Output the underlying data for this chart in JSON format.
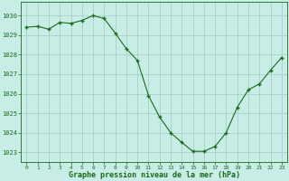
{
  "x": [
    0,
    1,
    2,
    3,
    4,
    5,
    6,
    7,
    8,
    9,
    10,
    11,
    12,
    13,
    14,
    15,
    16,
    17,
    18,
    19,
    20,
    21,
    22,
    23
  ],
  "y": [
    1029.4,
    1029.45,
    1029.3,
    1029.65,
    1029.6,
    1029.75,
    1030.0,
    1029.85,
    1029.1,
    1028.3,
    1027.7,
    1025.9,
    1024.8,
    1024.0,
    1023.5,
    1023.05,
    1023.05,
    1023.3,
    1024.0,
    1025.3,
    1026.2,
    1026.5,
    1027.2,
    1027.85
  ],
  "line_color": "#1a6b1a",
  "marker": "+",
  "bg_color": "#c8ece6",
  "grid_color": "#aacfc8",
  "xlabel": "Graphe pression niveau de la mer (hPa)",
  "xlabel_color": "#1a6b1a",
  "tick_color": "#1a6b1a",
  "ylim": [
    1022.5,
    1030.7
  ],
  "xlim": [
    -0.5,
    23.5
  ],
  "yticks": [
    1023,
    1024,
    1025,
    1026,
    1027,
    1028,
    1029,
    1030
  ],
  "xticks": [
    0,
    1,
    2,
    3,
    4,
    5,
    6,
    7,
    8,
    9,
    10,
    11,
    12,
    13,
    14,
    15,
    16,
    17,
    18,
    19,
    20,
    21,
    22,
    23
  ],
  "figsize": [
    3.2,
    2.0
  ],
  "dpi": 100
}
